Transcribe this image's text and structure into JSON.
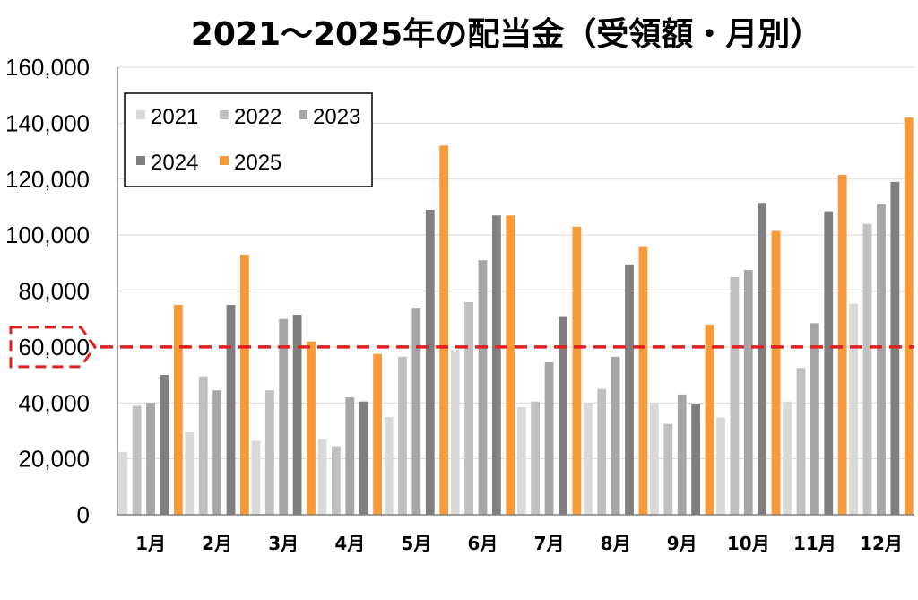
{
  "chart_data": {
    "type": "bar",
    "title": "2021～2025年の配当金（受領額・月別）",
    "xlabel": "",
    "ylabel": "",
    "ylim": [
      0,
      160000
    ],
    "yticks": [
      0,
      20000,
      40000,
      60000,
      80000,
      100000,
      120000,
      140000,
      160000
    ],
    "ytick_labels": [
      "0",
      "20,000",
      "40,000",
      "60,000",
      "80,000",
      "100,000",
      "120,000",
      "140,000",
      "160,000"
    ],
    "categories": [
      "1月",
      "2月",
      "3月",
      "4月",
      "5月",
      "6月",
      "7月",
      "8月",
      "9月",
      "10月",
      "11月",
      "12月"
    ],
    "series": [
      {
        "name": "2021",
        "color": "#d9d9d9",
        "values": [
          22500,
          29500,
          26500,
          27000,
          35000,
          59000,
          38500,
          40000,
          40000,
          34800,
          40500,
          75500
        ]
      },
      {
        "name": "2022",
        "color": "#c0c0c0",
        "values": [
          39000,
          49500,
          44500,
          24500,
          56500,
          76000,
          40500,
          45000,
          32500,
          85000,
          52500,
          104000
        ]
      },
      {
        "name": "2023",
        "color": "#a6a6a6",
        "values": [
          40000,
          44500,
          70000,
          42000,
          74000,
          91000,
          54500,
          56500,
          43000,
          87500,
          68500,
          111000
        ]
      },
      {
        "name": "2024",
        "color": "#7f7f7f",
        "values": [
          50000,
          75000,
          71500,
          40500,
          109000,
          107000,
          71000,
          89500,
          39500,
          111500,
          108500,
          119000
        ]
      },
      {
        "name": "2025",
        "color": "#f79a3a",
        "values": [
          75000,
          93000,
          62000,
          57500,
          132000,
          107000,
          103000,
          96000,
          68000,
          101500,
          121500,
          142000
        ]
      }
    ],
    "reference_line": {
      "value": 60000,
      "color": "#e02020",
      "style": "dashed"
    },
    "highlighted_tick": "60,000",
    "grid": true,
    "legend_position": "top-left"
  }
}
